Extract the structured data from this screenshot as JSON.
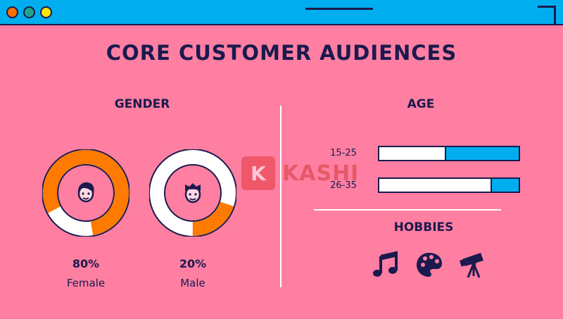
{
  "title": "CORE CUSTOMER AUDIENCES",
  "gender": {
    "heading": "GENDER",
    "female": {
      "percent_label": "80%",
      "label": "Female",
      "fraction": 0.8
    },
    "male": {
      "percent_label": "20%",
      "label": "Male",
      "fraction": 0.2
    }
  },
  "age": {
    "heading": "AGE",
    "groups": [
      {
        "label": "15-25",
        "fraction": 0.53
      },
      {
        "label": "26-35",
        "fraction": 0.2
      }
    ]
  },
  "hobbies": {
    "heading": "HOBBIES",
    "icons": [
      "music-note-icon",
      "palette-icon",
      "telescope-icon"
    ]
  },
  "watermark": {
    "logo_letter": "K",
    "text": "KASHI"
  },
  "colors": {
    "background": "#ff7fa2",
    "window_bar": "#00aeef",
    "ink": "#1b1a4e",
    "accent_orange": "#ff7a00",
    "bar_fill": "#00aeef",
    "white": "#ffffff"
  }
}
